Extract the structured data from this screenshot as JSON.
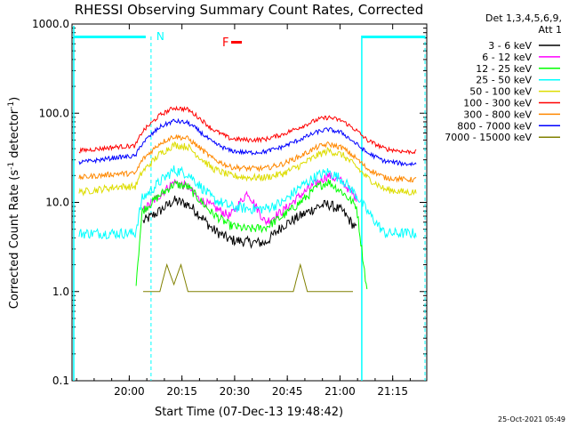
{
  "chart_data": {
    "type": "line",
    "title": "RHESSI Observing Summary Count Rates, Corrected",
    "xlabel": "Start Time (07-Dec-13 19:48:42)",
    "ylabel_main": "Corrected Count Rate (s",
    "ylabel_sup1": "-1",
    "ylabel_mid": " detector",
    "ylabel_sup2": "-1",
    "ylabel_end": ")",
    "yscale": "log",
    "ylim": [
      0.1,
      1000.0
    ],
    "xlim_minutes": [
      -5,
      96
    ],
    "x_ticks": [
      {
        "minute": 11.3,
        "label": "20:00"
      },
      {
        "minute": 26.3,
        "label": "20:15"
      },
      {
        "minute": 41.3,
        "label": "20:30"
      },
      {
        "minute": 56.3,
        "label": "20:45"
      },
      {
        "minute": 71.3,
        "label": "21:00"
      },
      {
        "minute": 86.3,
        "label": "21:15"
      }
    ],
    "y_ticks": [
      {
        "value": 1000,
        "label": "1000.0"
      },
      {
        "value": 100,
        "label": "100.0"
      },
      {
        "value": 10,
        "label": "10.0"
      },
      {
        "value": 1,
        "label": "1.0"
      },
      {
        "value": 0.1,
        "label": "0.1"
      }
    ],
    "legend_header": [
      "Det 1,3,4,5,6,9,",
      "Att 1"
    ],
    "legend_placement": "right",
    "flags": {
      "night_label": "N",
      "flare_label": "F"
    },
    "night_markers_minutes": [
      -4.5,
      17.5,
      77.5,
      95.5
    ],
    "series": [
      {
        "name": "3 - 6 keV",
        "color": "#000000",
        "x": [
          -3,
          13,
          15,
          20,
          24,
          28,
          31,
          35,
          40,
          45,
          50,
          55,
          60,
          65,
          68,
          72,
          76,
          79,
          84
        ],
        "values": [
          null,
          null,
          6,
          8,
          10.5,
          9.5,
          7.5,
          5,
          3.8,
          3.6,
          3.5,
          5.5,
          7,
          9,
          9.5,
          8,
          5,
          null,
          null
        ]
      },
      {
        "name": "6 - 12 keV",
        "color": "#ff00ff",
        "x": [
          -3,
          13,
          15,
          20,
          24,
          28,
          31,
          35,
          40,
          45,
          50,
          55,
          60,
          65,
          68,
          72,
          76,
          79,
          84
        ],
        "values": [
          null,
          null,
          8,
          12,
          17,
          15,
          11,
          9,
          7,
          13,
          6,
          8,
          12,
          17,
          20,
          17,
          11,
          null,
          null
        ]
      },
      {
        "name": "12 - 25 keV",
        "color": "#00ff00",
        "x": [
          -3,
          13,
          15,
          20,
          24,
          28,
          31,
          35,
          40,
          45,
          50,
          55,
          60,
          65,
          68,
          72,
          76,
          79,
          84
        ],
        "values": [
          null,
          1.0,
          8,
          12,
          16,
          15,
          11,
          7.5,
          5.5,
          5.0,
          5.2,
          7,
          10,
          15,
          17,
          13,
          9,
          1.0,
          null
        ]
      },
      {
        "name": "25 - 50 keV",
        "color": "#00ffff",
        "x": [
          -3,
          3,
          8,
          13,
          15,
          20,
          24,
          28,
          31,
          35,
          40,
          45,
          50,
          55,
          60,
          65,
          68,
          72,
          76,
          79,
          84,
          90,
          93
        ],
        "values": [
          4.5,
          4.5,
          4.5,
          4.5,
          11,
          17,
          23,
          21,
          16,
          11,
          9,
          8.5,
          8.5,
          10,
          15,
          20,
          22,
          18,
          12,
          8,
          4.5,
          4.5,
          4.5
        ]
      },
      {
        "name": "50 - 100 keV",
        "color": "#dddd00",
        "x": [
          -3,
          3,
          8,
          13,
          15,
          20,
          24,
          28,
          31,
          35,
          40,
          45,
          50,
          55,
          60,
          65,
          68,
          72,
          76,
          79,
          84,
          90,
          93
        ],
        "values": [
          13,
          14,
          15,
          15,
          22,
          35,
          44,
          42,
          33,
          24,
          20,
          19,
          19,
          21,
          26,
          34,
          38,
          34,
          25,
          19,
          14,
          13,
          13
        ]
      },
      {
        "name": "100 - 300 keV",
        "color": "#ff0000",
        "x": [
          -3,
          3,
          8,
          13,
          15,
          20,
          24,
          28,
          31,
          35,
          40,
          45,
          50,
          55,
          60,
          65,
          68,
          72,
          76,
          79,
          84,
          90,
          93
        ],
        "values": [
          38,
          40,
          42,
          43,
          62,
          95,
          115,
          110,
          90,
          66,
          52,
          50,
          51,
          58,
          70,
          85,
          90,
          82,
          64,
          50,
          40,
          37,
          37
        ]
      },
      {
        "name": "300 - 800 keV",
        "color": "#ff8800",
        "x": [
          -3,
          3,
          8,
          13,
          15,
          20,
          24,
          28,
          31,
          35,
          40,
          45,
          50,
          55,
          60,
          65,
          68,
          72,
          76,
          79,
          84,
          90,
          93
        ],
        "values": [
          19,
          20,
          21,
          21,
          30,
          46,
          55,
          52,
          42,
          31,
          25,
          24,
          24,
          27,
          33,
          42,
          45,
          41,
          31,
          24,
          19,
          18,
          18
        ]
      },
      {
        "name": "800 - 7000 keV",
        "color": "#0000ff",
        "x": [
          -3,
          3,
          8,
          13,
          15,
          20,
          24,
          28,
          31,
          35,
          40,
          45,
          50,
          55,
          60,
          65,
          68,
          72,
          76,
          79,
          84,
          90,
          93
        ],
        "values": [
          28,
          30,
          32,
          33,
          46,
          70,
          82,
          78,
          64,
          47,
          38,
          36,
          37,
          42,
          51,
          62,
          66,
          60,
          45,
          36,
          29,
          27,
          27
        ]
      },
      {
        "name": "7000 - 15000 keV",
        "color": "#808000",
        "x": [
          -3,
          3,
          8,
          13,
          15,
          20,
          22,
          24,
          26,
          28,
          30,
          35,
          40,
          45,
          50,
          55,
          58,
          60,
          62,
          65,
          70,
          75,
          79,
          84
        ],
        "values": [
          null,
          null,
          null,
          null,
          1.0,
          1.0,
          2.0,
          1.2,
          2.0,
          1.0,
          1.0,
          1.0,
          1.0,
          1.0,
          1.0,
          1.0,
          1.0,
          2.0,
          1.0,
          1.0,
          1.0,
          1.0,
          null,
          null
        ]
      }
    ],
    "grid": false
  },
  "timestamp": "25-Oct-2021 05:49"
}
